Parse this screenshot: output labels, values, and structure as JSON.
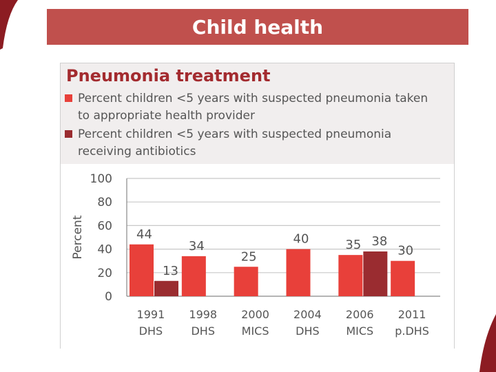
{
  "slide": {
    "title": "Child health",
    "accent_color": "#c0504d"
  },
  "chart_data": {
    "type": "bar",
    "title": "Pneumonia treatment",
    "ylabel": "Percent",
    "ylim": [
      0,
      100
    ],
    "yticks": [
      0,
      20,
      40,
      60,
      80,
      100
    ],
    "grid": true,
    "legend_position": "top",
    "categories": [
      {
        "line1": "1991",
        "line2": "DHS"
      },
      {
        "line1": "1998",
        "line2": "DHS"
      },
      {
        "line1": "2000",
        "line2": "MICS"
      },
      {
        "line1": "2004",
        "line2": "DHS"
      },
      {
        "line1": "2006",
        "line2": "MICS"
      },
      {
        "line1": "2011",
        "line2": "p.DHS"
      }
    ],
    "series": [
      {
        "name": "Percent children <5 years with suspected pneumonia taken to appropriate health provider",
        "color": "#e8403a",
        "values": [
          44,
          34,
          25,
          40,
          35,
          30
        ]
      },
      {
        "name": "Percent children <5 years with suspected pneumonia receiving antibiotics",
        "color": "#9a2c30",
        "values": [
          13,
          null,
          null,
          null,
          38,
          null
        ]
      }
    ]
  }
}
